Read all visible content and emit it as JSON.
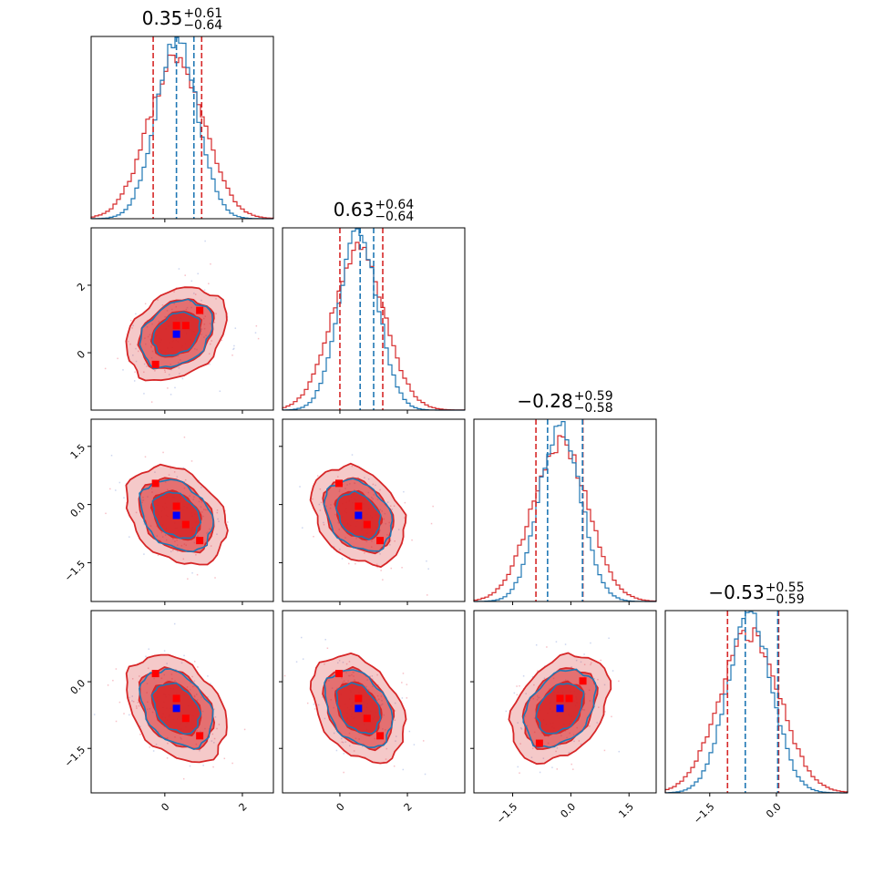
{
  "chart_data": {
    "type": "corner",
    "parameters": 4,
    "titles": [
      {
        "median": "0.35",
        "plus": "+0.61",
        "minus": "−0.64"
      },
      {
        "median": "0.63",
        "plus": "+0.64",
        "minus": "−0.64"
      },
      {
        "median": "−0.28",
        "plus": "+0.59",
        "minus": "−0.58"
      },
      {
        "median": "−0.53",
        "plus": "+0.55",
        "minus": "−0.59"
      }
    ],
    "axis_ranges": [
      [
        -1.9,
        2.8
      ],
      [
        -1.7,
        3.7
      ],
      [
        -2.5,
        2.2
      ],
      [
        -2.5,
        1.6
      ]
    ],
    "ticks": [
      {
        "values": [
          0,
          2
        ],
        "labels": [
          "0",
          "2"
        ]
      },
      {
        "values": [
          0,
          2
        ],
        "labels": [
          "0",
          "2"
        ]
      },
      {
        "values": [
          -1.5,
          0.0,
          1.5
        ],
        "labels": [
          "−1.5",
          "0.0",
          "1.5"
        ]
      },
      {
        "values": [
          -1.5,
          0.0
        ],
        "labels": [
          "−1.5",
          "0.0"
        ]
      }
    ],
    "series": [
      {
        "name": "",
        "color": "#d62728",
        "role": "filled contours + histogram"
      },
      {
        "name": "",
        "color": "#1f77b4",
        "role": "line contours + histogram"
      }
    ],
    "quantile_lines": {
      "red": [
        [
          -0.3,
          0.95
        ],
        [
          0.0,
          1.27
        ],
        [
          -0.9,
          0.31
        ],
        [
          -1.1,
          0.05
        ]
      ],
      "blue": [
        [
          0.3,
          0.75
        ],
        [
          0.6,
          1.0
        ],
        [
          -0.6,
          0.3
        ],
        [
          -0.7,
          0.03
        ]
      ]
    },
    "means": [
      {
        "x": 0.3,
        "y": 0.5
      },
      {
        "x": 0.3,
        "y": -0.3
      },
      {
        "x": 0.6,
        "y": -0.3
      },
      {
        "x": 0.3,
        "y": -0.6
      },
      {
        "x": 0.6,
        "y": -0.6
      },
      {
        "x": -0.2,
        "y": -0.6
      }
    ],
    "mean_points": [
      0.3,
      0.55,
      -0.28,
      -0.6
    ],
    "sigmas": [
      0.6,
      0.64,
      0.59,
      0.56
    ],
    "red_markers": [
      [
        -0.4,
        0.5,
        1.0,
        0.9
      ],
      [
        0.0,
        0.3,
        0.8,
        1.35
      ],
      [
        0.6,
        0.05,
        -0.4,
        -1.0
      ],
      [
        -0.3,
        -0.3,
        -0.7,
        0.6
      ]
    ],
    "grid": false,
    "legend": "none"
  }
}
